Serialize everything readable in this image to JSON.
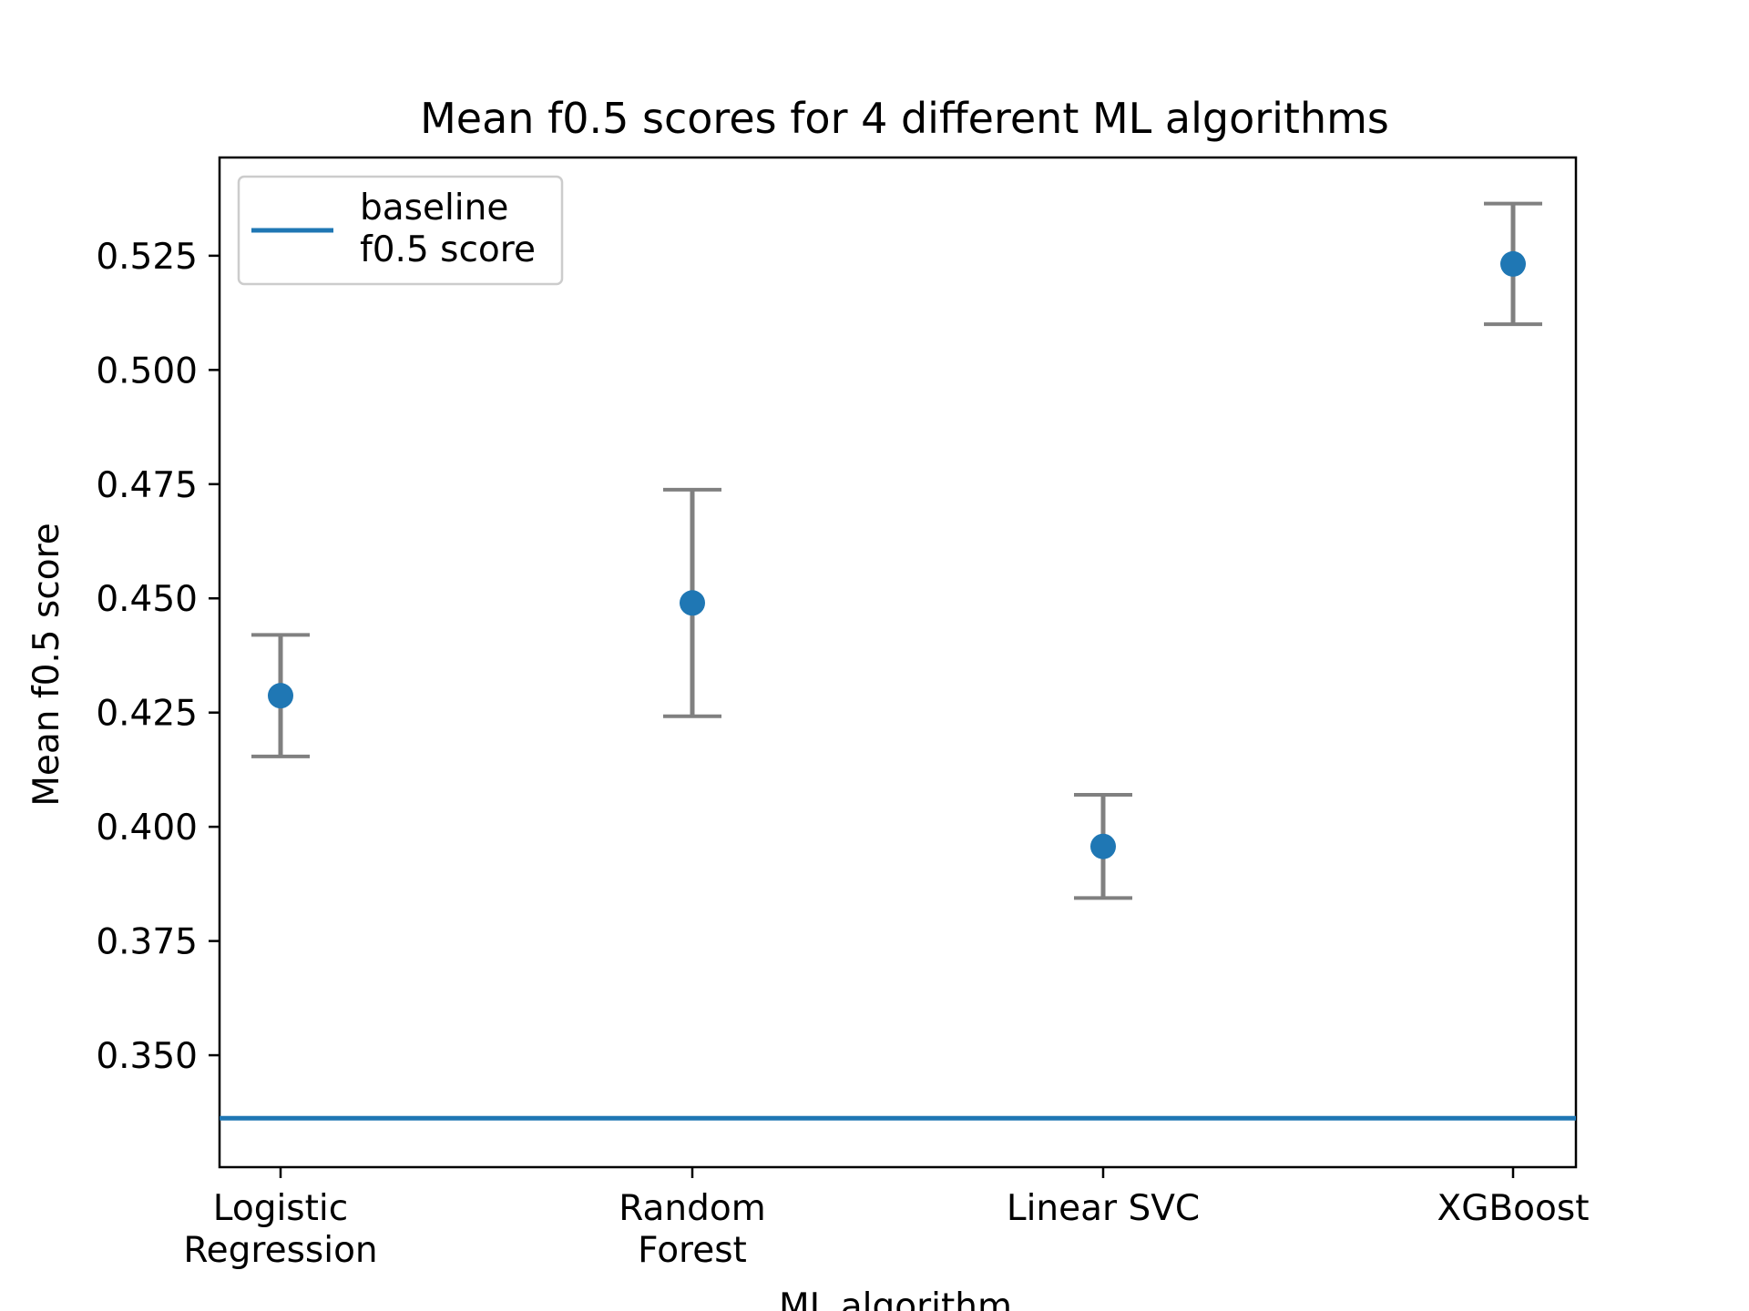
{
  "chart_data": {
    "type": "scatter",
    "title": "Mean f0.5 scores for 4 different ML algorithms",
    "xlabel": "ML algorithm",
    "ylabel": "Mean f0.5 score",
    "categories": [
      [
        "Logistic",
        "Regression"
      ],
      [
        "Random",
        "Forest"
      ],
      [
        "Linear SVC"
      ],
      [
        "XGBoost"
      ]
    ],
    "series": [
      {
        "values": [
          0.4287,
          0.449,
          0.3957,
          0.5232
        ],
        "error_low": [
          0.4154,
          0.4242,
          0.3844,
          0.51
        ],
        "error_high": [
          0.442,
          0.4738,
          0.407,
          0.5364
        ],
        "color": "#1f77b4",
        "error_color": "#808080"
      }
    ],
    "baseline": {
      "value": 0.3362,
      "label": [
        "baseline",
        "f0.5 score"
      ],
      "color": "#1f77b4"
    },
    "ylim": [
      0.3255,
      0.5465
    ],
    "yticks": [
      0.35,
      0.375,
      0.4,
      0.425,
      0.45,
      0.475,
      0.5,
      0.525
    ],
    "ytick_labels": [
      "0.350",
      "0.375",
      "0.400",
      "0.425",
      "0.450",
      "0.475",
      "0.500",
      "0.525"
    ],
    "grid": false,
    "legend_position": "upper-left"
  }
}
